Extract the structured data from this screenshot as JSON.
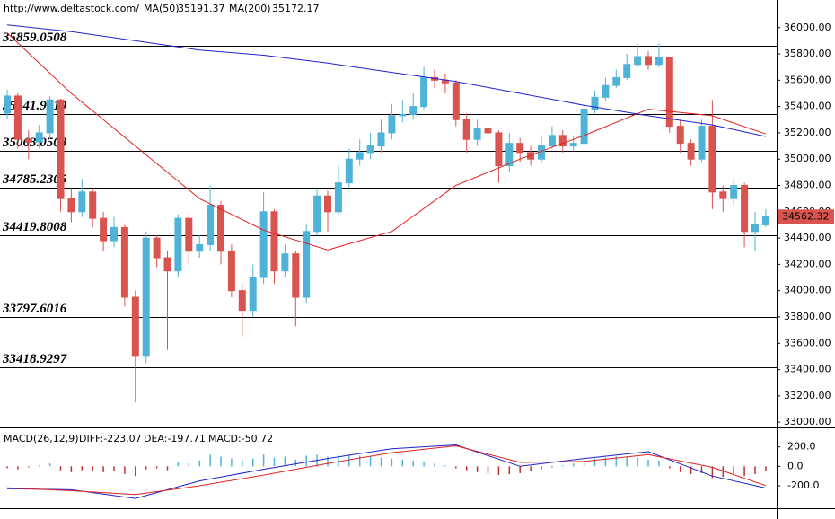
{
  "chart_data": [
    {
      "type": "candlestick",
      "source": "http://www.deltastock.com/",
      "up_color": "#4fb3d9",
      "down_color": "#d9534f",
      "open": [
        35350,
        35480,
        35150,
        35130,
        35200,
        35450,
        34700,
        34600,
        34750,
        34550,
        34380,
        34480,
        33950,
        33500,
        34400,
        34250,
        34150,
        34550,
        34300,
        34350,
        34650,
        34300,
        34000,
        33850,
        34100,
        34600,
        34150,
        34280,
        33950,
        34450,
        34720,
        34600,
        34820,
        35000,
        35050,
        35100,
        35200,
        35330,
        35340,
        35400,
        35620,
        35600,
        35580,
        35300,
        35150,
        35230,
        35200,
        34950,
        35120,
        35050,
        35000,
        35100,
        35180,
        35100,
        35120,
        35380,
        35470,
        35560,
        35620,
        35720,
        35780,
        35720,
        35770,
        35250,
        35120,
        35000,
        35250,
        34750,
        34700,
        34800,
        34450,
        34500
      ],
      "high": [
        35530,
        35500,
        35220,
        35260,
        35480,
        35460,
        34780,
        34850,
        34780,
        34600,
        34560,
        34500,
        34000,
        34450,
        34420,
        34300,
        34580,
        34580,
        34420,
        34800,
        34680,
        34350,
        34050,
        34200,
        34750,
        34620,
        34350,
        34300,
        34500,
        34780,
        34760,
        34950,
        35080,
        35150,
        35200,
        35300,
        35420,
        35450,
        35500,
        35700,
        35680,
        35650,
        35600,
        35350,
        35300,
        35280,
        35220,
        35200,
        35160,
        35100,
        35180,
        35250,
        35220,
        35180,
        35420,
        35520,
        35620,
        35680,
        35800,
        35880,
        35820,
        35880,
        35780,
        35300,
        35150,
        35300,
        35450,
        34800,
        34850,
        34820,
        34600,
        34620
      ],
      "low": [
        35300,
        35080,
        35000,
        35080,
        35150,
        34600,
        34520,
        34560,
        34480,
        34300,
        34330,
        33880,
        33150,
        33450,
        34180,
        33550,
        34100,
        34200,
        34250,
        34300,
        34200,
        33950,
        33650,
        33800,
        34050,
        34050,
        34100,
        33730,
        33900,
        34420,
        34450,
        34580,
        34780,
        34950,
        35000,
        35050,
        35150,
        35280,
        35300,
        35380,
        35540,
        35500,
        35250,
        35050,
        35100,
        35050,
        34820,
        34900,
        34980,
        34950,
        34970,
        35080,
        35050,
        35060,
        35100,
        35350,
        35440,
        35540,
        35600,
        35700,
        35680,
        35700,
        35200,
        35050,
        34950,
        34980,
        34620,
        34600,
        34650,
        34330,
        34300,
        34480
      ],
      "close": [
        35480,
        35150,
        35130,
        35200,
        35450,
        34700,
        34600,
        34750,
        34550,
        34380,
        34480,
        33950,
        33500,
        34400,
        34250,
        34150,
        34550,
        34300,
        34350,
        34650,
        34300,
        34000,
        33850,
        34100,
        34600,
        34150,
        34280,
        33950,
        34450,
        34720,
        34600,
        34820,
        35000,
        35050,
        35100,
        35200,
        35330,
        35340,
        35400,
        35620,
        35600,
        35580,
        35300,
        35150,
        35230,
        35200,
        34950,
        35120,
        35050,
        35000,
        35100,
        35180,
        35100,
        35120,
        35380,
        35470,
        35560,
        35620,
        35720,
        35780,
        35720,
        35770,
        35250,
        35120,
        35000,
        35250,
        34750,
        34700,
        34800,
        34450,
        34500,
        34562.32
      ],
      "lines": [
        {
          "name": "MA(50)",
          "color": "#e02020",
          "x": [
            0,
            6,
            12,
            18,
            24,
            30,
            36,
            42,
            48,
            54,
            60,
            66,
            71
          ],
          "values": [
            35960,
            35500,
            35100,
            34700,
            34460,
            34310,
            34450,
            34800,
            35000,
            35180,
            35380,
            35330,
            35191.37
          ]
        },
        {
          "name": "MA(200)",
          "color": "#2020d0",
          "x": [
            0,
            6,
            12,
            18,
            24,
            30,
            36,
            42,
            48,
            54,
            60,
            66,
            71
          ],
          "values": [
            36020,
            35970,
            35900,
            35830,
            35790,
            35730,
            35660,
            35590,
            35500,
            35410,
            35330,
            35260,
            35172.17
          ]
        }
      ],
      "levels": [
        35859.0508,
        35341.9219,
        35063.0508,
        34785.2305,
        34419.8008,
        33797.6016,
        33418.9297
      ],
      "level_color": "#e00000",
      "ylim": [
        32960,
        36210
      ],
      "yticks": [
        {
          "value": 33000,
          "label": "33000.00"
        },
        {
          "value": 33200,
          "label": "33200.00"
        },
        {
          "value": 33400,
          "label": "33400.00"
        },
        {
          "value": 33600,
          "label": "33600.00"
        },
        {
          "value": 33800,
          "label": "33800.00"
        },
        {
          "value": 34000,
          "label": "34000.00"
        },
        {
          "value": 34200,
          "label": "34200.00"
        },
        {
          "value": 34400,
          "label": "34400.00"
        },
        {
          "value": 34600,
          "label": "34600.00"
        },
        {
          "value": 34800,
          "label": "34800.00"
        },
        {
          "value": 35000,
          "label": "35000.00"
        },
        {
          "value": 35200,
          "label": "35200.00"
        },
        {
          "value": 35400,
          "label": "35400.00"
        },
        {
          "value": 35600,
          "label": "35600.00"
        },
        {
          "value": 35800,
          "label": "35800.00"
        },
        {
          "value": 36000,
          "label": "36000.00"
        }
      ]
    },
    {
      "type": "macd",
      "title": "MACD(26,12,9)",
      "legend": [
        "DIFF:-223.07",
        "DEA:-197.71",
        "MACD:-50.72"
      ],
      "legend_colors": [
        "#2020d0",
        "#e02020",
        "#2020d0"
      ],
      "up_color": "#4fb3d9",
      "down_color": "#c03030",
      "histogram": [
        -20,
        -30,
        -10,
        10,
        30,
        -40,
        -60,
        -40,
        -50,
        -60,
        -50,
        -80,
        -100,
        -30,
        -20,
        -40,
        40,
        30,
        60,
        120,
        100,
        80,
        60,
        80,
        120,
        90,
        100,
        70,
        110,
        120,
        100,
        110,
        120,
        110,
        100,
        90,
        80,
        70,
        60,
        50,
        30,
        10,
        -20,
        -40,
        -60,
        -70,
        -90,
        -80,
        -70,
        -50,
        -30,
        -10,
        10,
        30,
        60,
        80,
        90,
        100,
        100,
        90,
        70,
        60,
        -20,
        -60,
        -80,
        -70,
        -120,
        -110,
        -90,
        -100,
        -80,
        -50.72
      ],
      "series": [
        {
          "name": "DIFF",
          "color": "#2020d0",
          "x": [
            0,
            6,
            12,
            18,
            24,
            30,
            36,
            42,
            48,
            54,
            60,
            66,
            71
          ],
          "values": [
            -230,
            -240,
            -330,
            -150,
            -30,
            80,
            180,
            220,
            0,
            80,
            150,
            -100,
            -223.07
          ]
        },
        {
          "name": "DEA",
          "color": "#e02020",
          "x": [
            0,
            6,
            12,
            18,
            24,
            30,
            36,
            42,
            48,
            54,
            60,
            66,
            71
          ],
          "values": [
            -220,
            -250,
            -290,
            -200,
            -90,
            30,
            140,
            210,
            40,
            50,
            120,
            -10,
            -197.71
          ]
        }
      ],
      "ylim": [
        -430,
        390
      ],
      "yticks": [
        {
          "value": -200,
          "label": "-200.0"
        },
        {
          "value": 0,
          "label": "0.0"
        },
        {
          "value": 200,
          "label": "200.0"
        }
      ]
    }
  ]
}
